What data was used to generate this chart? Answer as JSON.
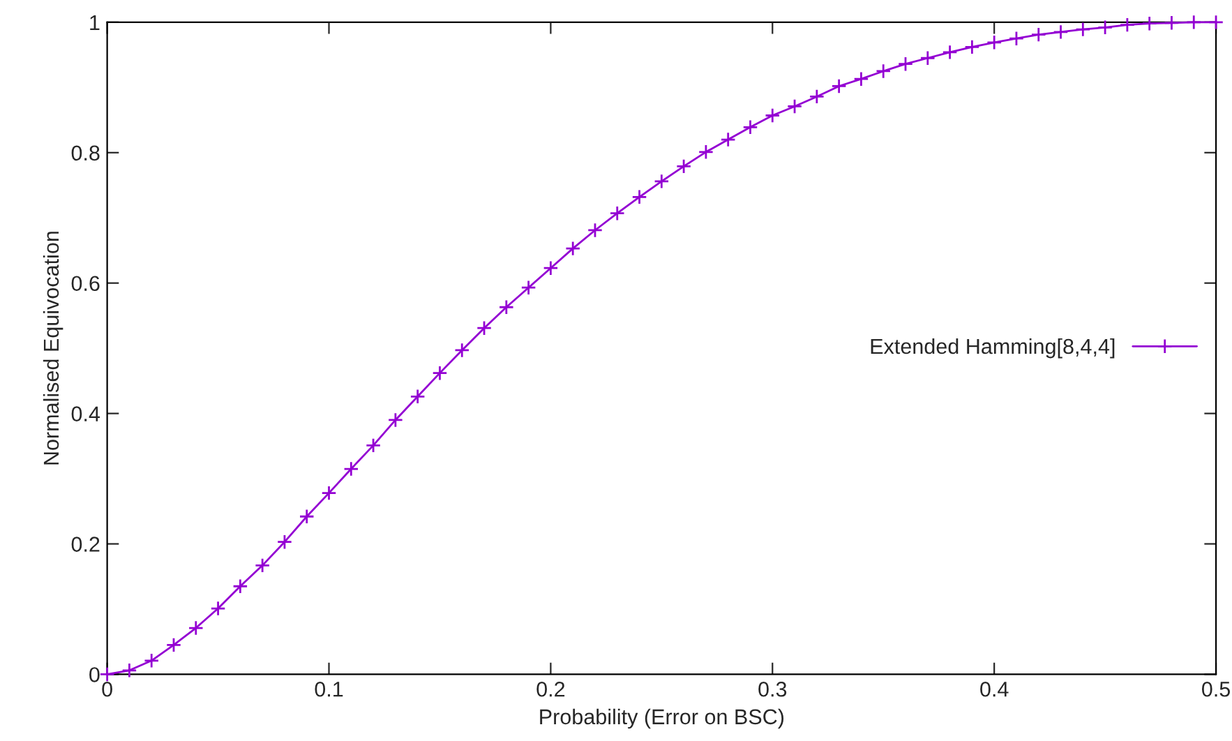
{
  "chart_data": {
    "type": "line",
    "xlabel": "Probability (Error on BSC)",
    "ylabel": "Normalised Equivocation",
    "x": [
      0,
      0.01,
      0.02,
      0.03,
      0.04,
      0.05,
      0.06,
      0.07,
      0.08,
      0.09,
      0.1,
      0.11,
      0.12,
      0.13,
      0.14,
      0.15,
      0.16,
      0.17,
      0.18,
      0.19,
      0.2,
      0.21,
      0.22,
      0.23,
      0.24,
      0.25,
      0.26,
      0.27,
      0.28,
      0.29,
      0.3,
      0.31,
      0.32,
      0.33,
      0.34,
      0.35,
      0.36,
      0.37,
      0.38,
      0.39,
      0.4,
      0.41,
      0.42,
      0.43,
      0.44,
      0.45,
      0.46,
      0.47,
      0.48,
      0.49,
      0.5
    ],
    "series": [
      {
        "name": "Extended Hamming[8,4,4]",
        "color": "#9400d3",
        "values": [
          0,
          0.006,
          0.021,
          0.045,
          0.071,
          0.101,
          0.135,
          0.167,
          0.203,
          0.242,
          0.278,
          0.315,
          0.351,
          0.39,
          0.426,
          0.462,
          0.497,
          0.531,
          0.563,
          0.593,
          0.623,
          0.653,
          0.681,
          0.707,
          0.732,
          0.756,
          0.779,
          0.801,
          0.82,
          0.839,
          0.857,
          0.871,
          0.886,
          0.902,
          0.913,
          0.925,
          0.936,
          0.945,
          0.954,
          0.962,
          0.969,
          0.975,
          0.981,
          0.985,
          0.989,
          0.992,
          0.996,
          0.998,
          0.999,
          1,
          1
        ]
      }
    ],
    "xlim": [
      0,
      0.5
    ],
    "ylim": [
      0,
      1
    ],
    "xticks": [
      0,
      0.1,
      0.2,
      0.3,
      0.4,
      0.5
    ],
    "yticks": [
      0,
      0.2,
      0.4,
      0.6,
      0.8,
      1
    ],
    "marker": "cross",
    "line_style": "solid",
    "legend": "right",
    "grid": false
  }
}
